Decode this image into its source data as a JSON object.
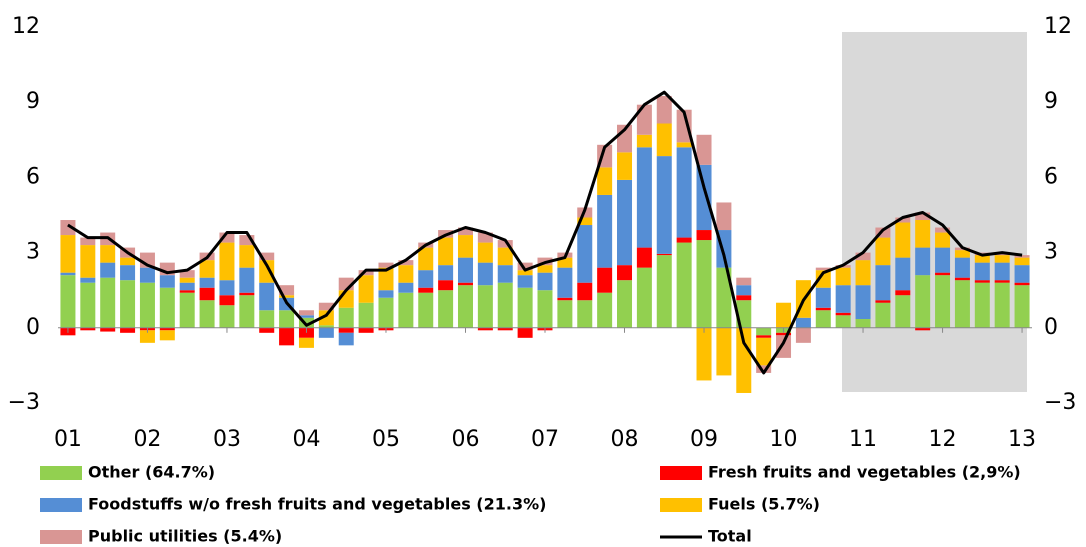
{
  "chart_data": {
    "type": "bar",
    "categories": [
      "01",
      null,
      null,
      null,
      "02",
      null,
      null,
      null,
      "03",
      null,
      null,
      null,
      "04",
      null,
      null,
      null,
      "05",
      null,
      null,
      null,
      "06",
      null,
      null,
      null,
      "07",
      null,
      null,
      null,
      "08",
      null,
      null,
      null,
      "09",
      null,
      null,
      null,
      "10",
      null,
      null,
      null,
      "11",
      null,
      null,
      null,
      "12",
      null,
      null,
      null,
      "13"
    ],
    "series": [
      {
        "name": "Other (64.7%)",
        "color": "#92d050",
        "type": "bar",
        "values": [
          2.1,
          1.8,
          2.0,
          1.9,
          1.8,
          1.6,
          1.4,
          1.1,
          0.9,
          1.3,
          0.7,
          0.7,
          0.4,
          0.1,
          0.8,
          1.0,
          1.2,
          1.4,
          1.4,
          1.5,
          1.7,
          1.7,
          1.8,
          1.6,
          1.5,
          1.1,
          1.1,
          1.4,
          1.9,
          2.4,
          2.9,
          3.4,
          3.5,
          2.4,
          1.1,
          -0.3,
          -0.2,
          0,
          0.7,
          0.5,
          0.35,
          1.0,
          1.3,
          2.1,
          2.1,
          1.9,
          1.8,
          1.8,
          1.7
        ]
      },
      {
        "name": "Fresh fruits and vegetables (2,9%)",
        "color": "#ff0000",
        "type": "bar",
        "values": [
          -0.3,
          -0.1,
          -0.15,
          -0.2,
          -0.1,
          -0.1,
          0.1,
          0.5,
          0.4,
          0.1,
          -0.2,
          -0.7,
          -0.4,
          0,
          -0.2,
          -0.2,
          -0.1,
          0,
          0.2,
          0.4,
          0.1,
          -0.1,
          -0.1,
          -0.4,
          -0.1,
          0.1,
          0.7,
          1.0,
          0.6,
          0.8,
          0.05,
          0.2,
          0.4,
          0,
          0.2,
          -0.1,
          -0.1,
          0,
          0.1,
          0.1,
          0,
          0.1,
          0.2,
          -0.1,
          0.1,
          0.1,
          0.1,
          0.1,
          0.1
        ]
      },
      {
        "name": "Foodstuffs w/o fresh fruits and vegetables (21.3%)",
        "color": "#558ed5",
        "type": "bar",
        "values": [
          0.1,
          0.2,
          0.6,
          0.6,
          0.6,
          0.5,
          0.3,
          0.4,
          0.6,
          1.0,
          1.1,
          0.5,
          0.1,
          -0.4,
          -0.5,
          0,
          0.3,
          0.4,
          0.7,
          0.6,
          1.0,
          0.9,
          0.7,
          0.5,
          0.7,
          1.2,
          2.3,
          2.9,
          3.4,
          4.0,
          3.9,
          3.6,
          2.6,
          1.5,
          0.4,
          0,
          0,
          0.4,
          0.8,
          1.1,
          1.35,
          1.4,
          1.3,
          1.1,
          1.0,
          0.8,
          0.7,
          0.7,
          0.7
        ]
      },
      {
        "name": "Fuels (5.7%)",
        "color": "#ffc000",
        "type": "bar",
        "values": [
          1.5,
          1.3,
          0.7,
          0.3,
          -0.5,
          -0.4,
          0.2,
          0.7,
          1.5,
          0.9,
          0.9,
          0.1,
          -0.4,
          0.6,
          0.7,
          1.1,
          0.9,
          0.7,
          0.9,
          1.1,
          0.9,
          0.8,
          0.7,
          0.2,
          0.3,
          0.4,
          0.3,
          1.1,
          1.1,
          0.5,
          1.3,
          0.2,
          -2.1,
          -1.9,
          -2.6,
          -1.1,
          1.0,
          1.5,
          0.7,
          0.7,
          1.0,
          1.1,
          1.4,
          1.1,
          0.6,
          0.3,
          0.3,
          0.3,
          0.3
        ]
      },
      {
        "name": "Public utilities (5.4%)",
        "color": "#d99694",
        "type": "bar",
        "values": [
          0.6,
          0.3,
          0.5,
          0.4,
          0.6,
          0.5,
          0.3,
          0.3,
          0.4,
          0.4,
          0.3,
          0.4,
          0.2,
          0.3,
          0.5,
          0.2,
          0.2,
          0.2,
          0.2,
          0.3,
          0.3,
          0.4,
          0.3,
          0.3,
          0.3,
          0.2,
          0.4,
          0.9,
          1.1,
          1.2,
          1.1,
          1.3,
          1.2,
          1.1,
          0.3,
          -0.3,
          -0.9,
          -0.6,
          0.1,
          0.1,
          0.3,
          0.4,
          0.2,
          0.3,
          0.2,
          0.1,
          0.1,
          0.1,
          0.1
        ]
      },
      {
        "name": "Total",
        "color": "#000000",
        "type": "line",
        "values": [
          4.1,
          3.6,
          3.6,
          3.0,
          2.5,
          2.2,
          2.3,
          2.8,
          3.8,
          3.8,
          2.5,
          1.0,
          0.1,
          0.5,
          1.5,
          2.3,
          2.3,
          2.7,
          3.3,
          3.7,
          4.0,
          3.8,
          3.5,
          2.3,
          2.6,
          2.8,
          4.7,
          7.2,
          7.9,
          8.9,
          9.4,
          8.6,
          5.6,
          2.9,
          -0.6,
          -1.8,
          -0.6,
          1.1,
          2.2,
          2.5,
          3.0,
          3.9,
          4.4,
          4.6,
          4.1,
          3.2,
          2.9,
          3.0,
          2.9
        ]
      }
    ],
    "ylim": [
      -3,
      12
    ],
    "yticks": [
      {
        "value": -3,
        "label": "−3"
      },
      0,
      3,
      6,
      9,
      12
    ],
    "y2lim": [
      -3,
      12
    ],
    "y2ticks": [
      {
        "value": -3,
        "label": "−3"
      },
      0,
      3,
      6,
      9,
      12
    ],
    "stacked": true,
    "grid": false
  }
}
